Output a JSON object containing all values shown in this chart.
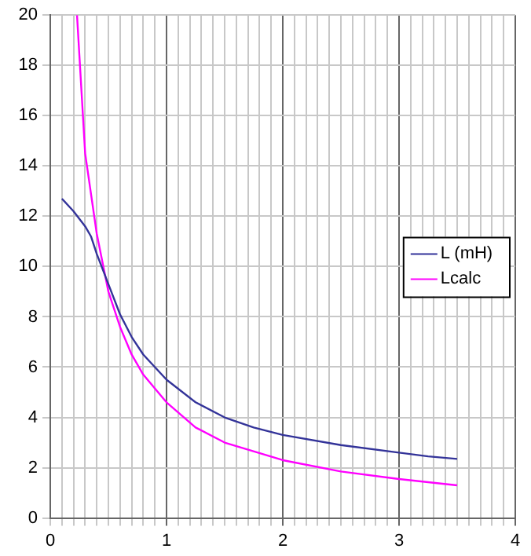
{
  "chart_data": {
    "type": "line",
    "xlim": [
      0,
      4
    ],
    "ylim": [
      0,
      20
    ],
    "xticks": [
      0,
      {
        "value": 0.1,
        "label": null
      },
      {
        "value": 0.2,
        "label": null
      },
      {
        "value": 0.3,
        "label": null
      },
      {
        "value": 0.4,
        "label": null
      },
      {
        "value": 0.5,
        "label": null
      },
      {
        "value": 0.6,
        "label": null
      },
      {
        "value": 0.7,
        "label": null
      },
      {
        "value": 0.8,
        "label": null
      },
      {
        "value": 0.9,
        "label": null
      },
      1,
      {
        "value": 1.1,
        "label": null
      },
      {
        "value": 1.2,
        "label": null
      },
      {
        "value": 1.3,
        "label": null
      },
      {
        "value": 1.4,
        "label": null
      },
      {
        "value": 1.5,
        "label": null
      },
      {
        "value": 1.6,
        "label": null
      },
      {
        "value": 1.7,
        "label": null
      },
      {
        "value": 1.8,
        "label": null
      },
      {
        "value": 1.9,
        "label": null
      },
      2,
      {
        "value": 2.1,
        "label": null
      },
      {
        "value": 2.2,
        "label": null
      },
      {
        "value": 2.3,
        "label": null
      },
      {
        "value": 2.4,
        "label": null
      },
      {
        "value": 2.5,
        "label": null
      },
      {
        "value": 2.6,
        "label": null
      },
      {
        "value": 2.7,
        "label": null
      },
      {
        "value": 2.8,
        "label": null
      },
      {
        "value": 2.9,
        "label": null
      },
      3,
      {
        "value": 3.1,
        "label": null
      },
      {
        "value": 3.2,
        "label": null
      },
      {
        "value": 3.3,
        "label": null
      },
      {
        "value": 3.4,
        "label": null
      },
      {
        "value": 3.5,
        "label": null
      },
      {
        "value": 3.6,
        "label": null
      },
      {
        "value": 3.7,
        "label": null
      },
      {
        "value": 3.8,
        "label": null
      },
      {
        "value": 3.9,
        "label": null
      },
      4
    ],
    "yticks": [
      0,
      2,
      4,
      6,
      8,
      10,
      12,
      14,
      16,
      18,
      20
    ],
    "grid": true,
    "legend": "right",
    "marker": "none",
    "line_style": "solid",
    "series": [
      {
        "name": "L (mH)",
        "color": "#333399",
        "x": [
          0.1,
          0.2,
          0.3,
          0.35,
          0.4,
          0.5,
          0.6,
          0.7,
          0.8,
          0.9,
          1.0,
          1.25,
          1.5,
          1.75,
          2.0,
          2.5,
          3.0,
          3.25,
          3.5
        ],
        "values": [
          12.7,
          12.2,
          11.6,
          11.2,
          10.5,
          9.3,
          8.1,
          7.2,
          6.5,
          6.0,
          5.5,
          4.6,
          4.0,
          3.6,
          3.3,
          2.9,
          2.6,
          2.45,
          2.35
        ]
      },
      {
        "name": "Lcalc",
        "color": "#ff00ff",
        "x": [
          0.23,
          0.3,
          0.4,
          0.5,
          0.6,
          0.7,
          0.8,
          1.0,
          1.25,
          1.5,
          2.0,
          2.5,
          3.0,
          3.5
        ],
        "values": [
          20,
          14.5,
          11.3,
          9.0,
          7.6,
          6.5,
          5.7,
          4.6,
          3.6,
          3.0,
          2.3,
          1.85,
          1.55,
          1.3
        ]
      }
    ]
  }
}
